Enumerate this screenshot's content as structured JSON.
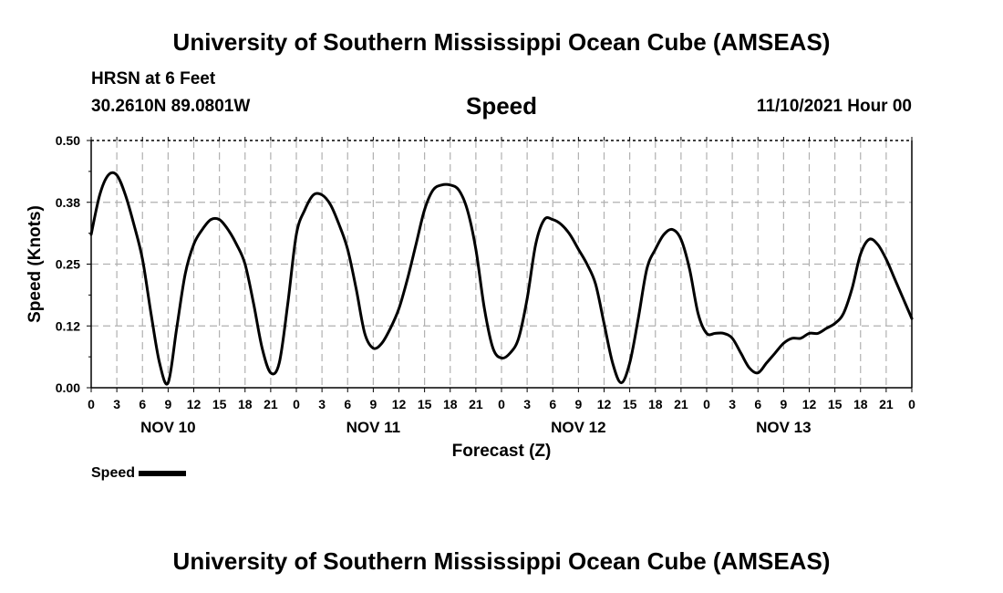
{
  "header": {
    "title": "University of Southern Mississippi Ocean Cube (AMSEAS)",
    "station": "HRSN at 6 Feet",
    "coords": "30.2610N  89.0801W",
    "chart_title": "Speed",
    "date": "11/10/2021 Hour 00"
  },
  "footer": {
    "title": "University of Southern Mississippi Ocean Cube (AMSEAS)"
  },
  "legend": {
    "label": "Speed"
  },
  "colors": {
    "line": "#000000",
    "grid": "#b0b0b0",
    "background": "#ffffff"
  },
  "chart_data": {
    "type": "line",
    "title": "Speed",
    "xlabel": "Forecast (Z)",
    "ylabel": "Speed (Knots)",
    "xlim": [
      0,
      96
    ],
    "ylim": [
      0,
      0.5
    ],
    "y_ticks": [
      0.0,
      0.125,
      0.25,
      0.375,
      0.5
    ],
    "y_tick_labels": [
      "0.00",
      "0.12",
      "0.25",
      "0.38",
      "0.50"
    ],
    "x_ticks": [
      0,
      3,
      6,
      9,
      12,
      15,
      18,
      21,
      24,
      27,
      30,
      33,
      36,
      39,
      42,
      45,
      48,
      51,
      54,
      57,
      60,
      63,
      66,
      69,
      72,
      75,
      78,
      81,
      84,
      87,
      90,
      93,
      96
    ],
    "x_tick_labels": [
      "0",
      "3",
      "6",
      "9",
      "12",
      "15",
      "18",
      "21",
      "0",
      "3",
      "6",
      "9",
      "12",
      "15",
      "18",
      "21",
      "0",
      "3",
      "6",
      "9",
      "12",
      "15",
      "18",
      "21",
      "0",
      "3",
      "6",
      "9",
      "12",
      "15",
      "18",
      "21",
      "0"
    ],
    "day_labels": [
      {
        "label": "NOV 10",
        "x": 9
      },
      {
        "label": "NOV 11",
        "x": 33
      },
      {
        "label": "NOV 12",
        "x": 57
      },
      {
        "label": "NOV 13",
        "x": 81
      }
    ],
    "grid": true,
    "series": [
      {
        "name": "Speed",
        "x": [
          0,
          1,
          2,
          3,
          4,
          5,
          6,
          7,
          8,
          9,
          10,
          11,
          12,
          13,
          14,
          15,
          16,
          17,
          18,
          19,
          20,
          21,
          22,
          23,
          24,
          25,
          26,
          27,
          28,
          29,
          30,
          31,
          32,
          33,
          34,
          35,
          36,
          37,
          38,
          39,
          40,
          41,
          42,
          43,
          44,
          45,
          46,
          47,
          48,
          49,
          50,
          51,
          52,
          53,
          54,
          55,
          56,
          57,
          58,
          59,
          60,
          61,
          62,
          63,
          64,
          65,
          66,
          67,
          68,
          69,
          70,
          71,
          72,
          73,
          74,
          75,
          76,
          77,
          78,
          79,
          80,
          81,
          82,
          83,
          84,
          85,
          86,
          87,
          88,
          89,
          90,
          91,
          92,
          93,
          94,
          95,
          96
        ],
        "values": [
          0.31,
          0.39,
          0.43,
          0.43,
          0.39,
          0.33,
          0.26,
          0.15,
          0.05,
          0.01,
          0.12,
          0.23,
          0.29,
          0.32,
          0.34,
          0.34,
          0.32,
          0.29,
          0.25,
          0.17,
          0.08,
          0.03,
          0.05,
          0.17,
          0.31,
          0.36,
          0.39,
          0.39,
          0.37,
          0.33,
          0.28,
          0.2,
          0.11,
          0.08,
          0.09,
          0.12,
          0.16,
          0.22,
          0.29,
          0.36,
          0.4,
          0.41,
          0.41,
          0.4,
          0.36,
          0.28,
          0.16,
          0.08,
          0.06,
          0.07,
          0.1,
          0.18,
          0.29,
          0.34,
          0.34,
          0.33,
          0.31,
          0.28,
          0.25,
          0.21,
          0.13,
          0.05,
          0.01,
          0.05,
          0.14,
          0.24,
          0.28,
          0.31,
          0.32,
          0.3,
          0.24,
          0.15,
          0.11,
          0.11,
          0.11,
          0.1,
          0.07,
          0.04,
          0.03,
          0.05,
          0.07,
          0.09,
          0.1,
          0.1,
          0.11,
          0.11,
          0.12,
          0.13,
          0.15,
          0.2,
          0.27,
          0.3,
          0.29,
          0.26,
          0.22,
          0.18,
          0.14
        ]
      }
    ]
  }
}
